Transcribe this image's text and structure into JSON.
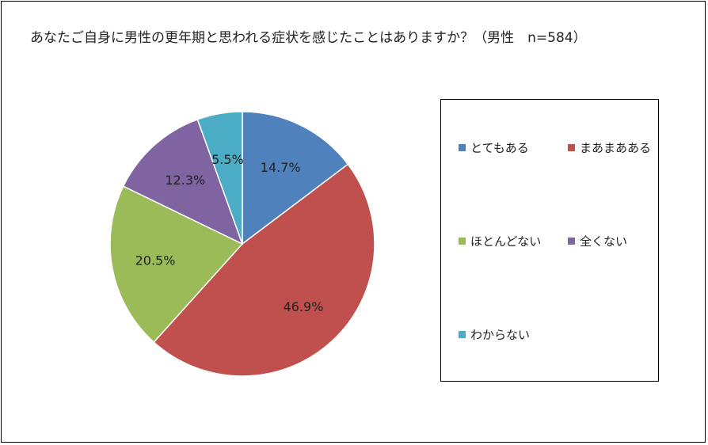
{
  "chart_data": {
    "type": "pie",
    "title": "あなたご自身に男性の更年期と思われる症状を感じたことはありますか？（男性　n=584）",
    "categories": [
      "とてもある",
      "まあまあある",
      "ほとんどない",
      "全くない",
      "わからない"
    ],
    "values": [
      14.7,
      46.9,
      20.5,
      12.3,
      5.5
    ],
    "labels": [
      "14.7%",
      "46.9%",
      "20.5%",
      "12.3%",
      "5.5%"
    ],
    "colors": [
      "#4F81BD",
      "#C0504D",
      "#9BBB59",
      "#8064A2",
      "#4BACC6"
    ],
    "legend_placement": "right"
  }
}
